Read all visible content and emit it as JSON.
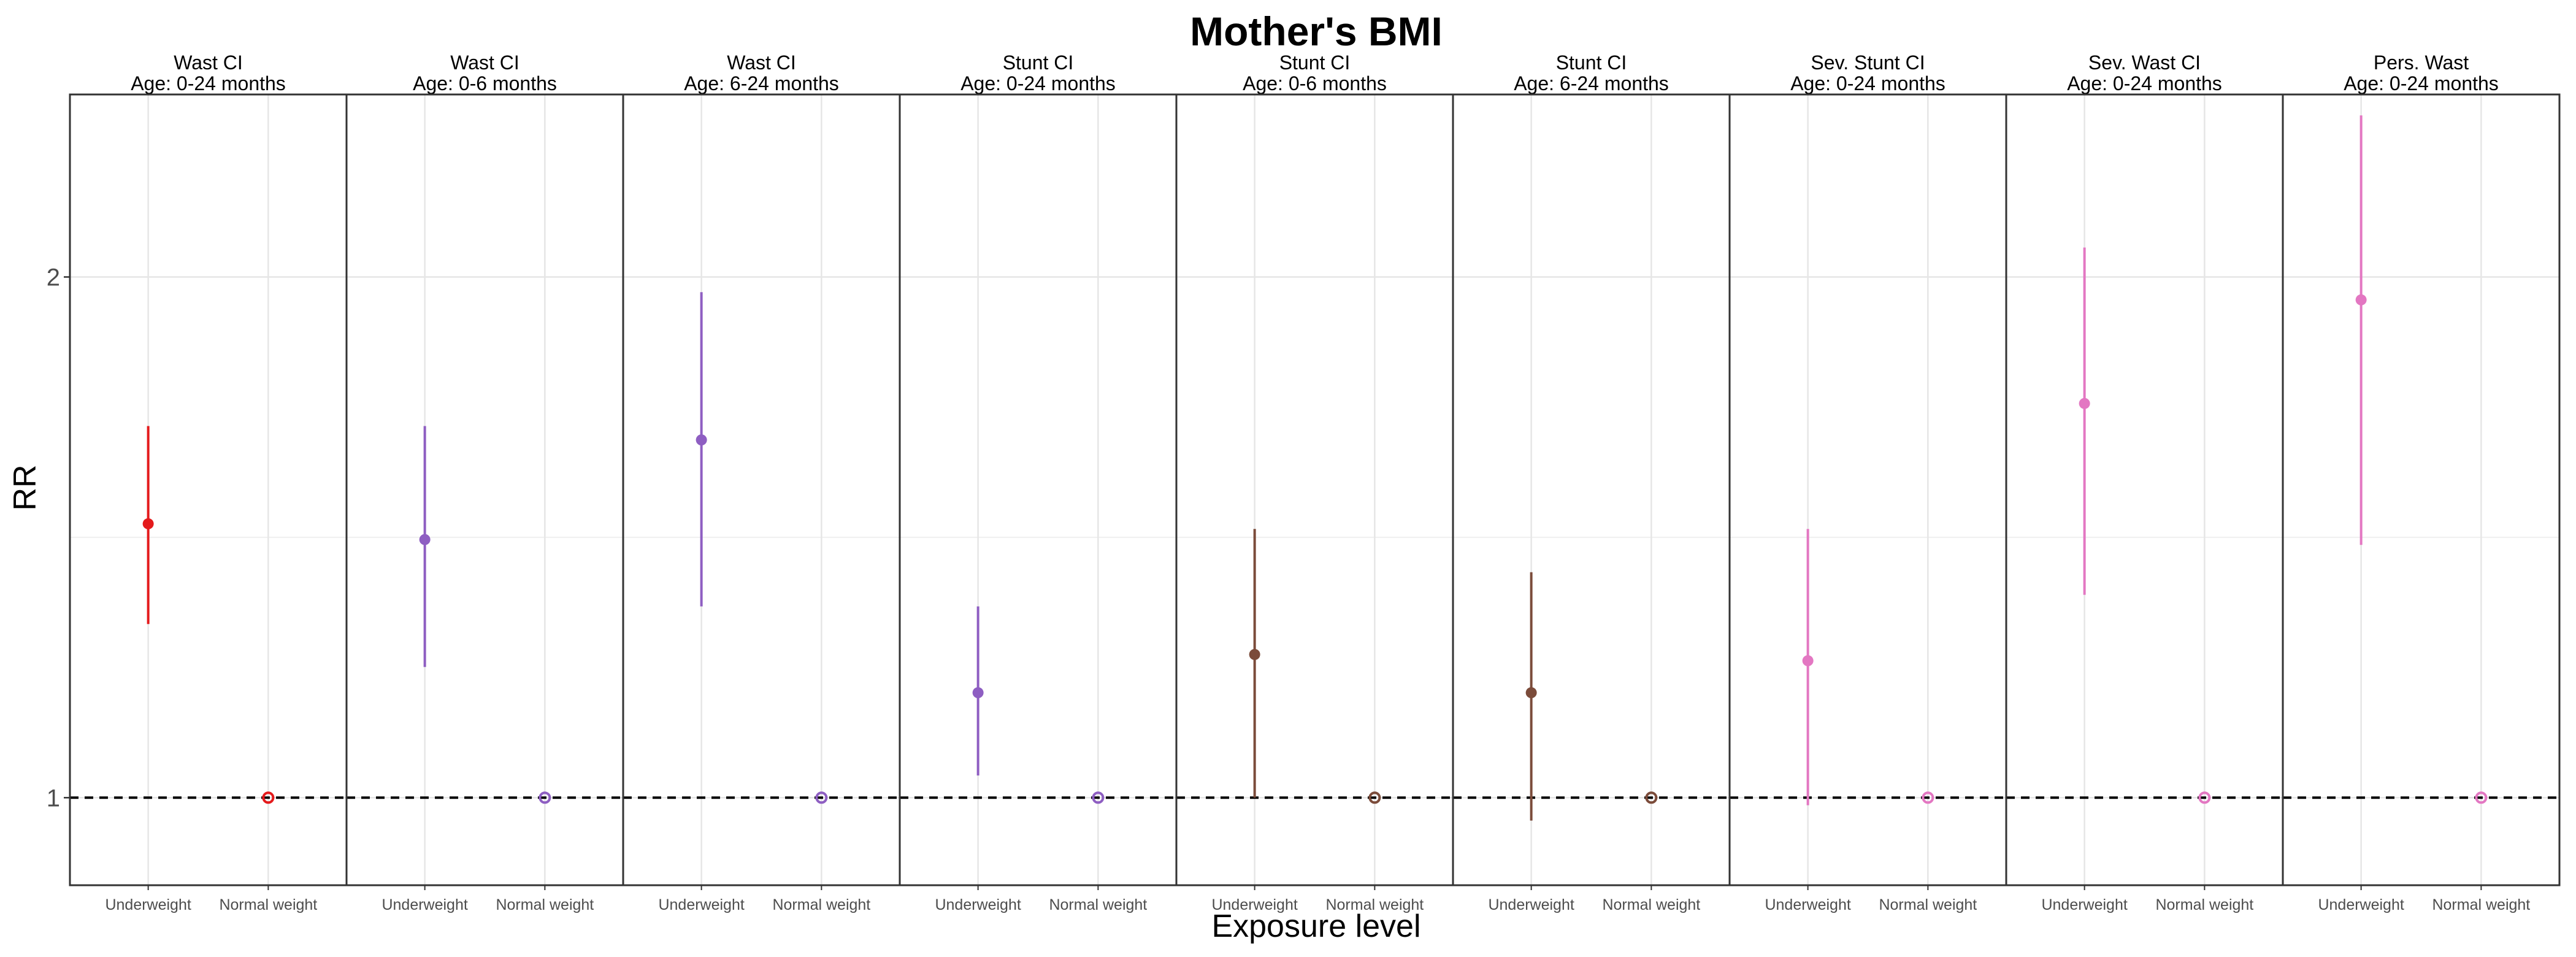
{
  "chart_data": {
    "type": "scatter",
    "title": "Mother's BMI",
    "xlabel": "Exposure level",
    "ylabel": "RR",
    "ylim": [
      0.89,
      2.55
    ],
    "yticks": [
      1,
      2
    ],
    "y_scale": "log",
    "categories": [
      "Underweight",
      "Normal weight"
    ],
    "reference_line": 1,
    "grid": true,
    "legend": "none",
    "panels": [
      {
        "title": "Wast CI",
        "subtitle": "Age: 0-24 months",
        "color": "#e41a1c",
        "points": [
          {
            "x": "Underweight",
            "y": 1.44,
            "lower": 1.26,
            "upper": 1.64
          },
          {
            "x": "Normal weight",
            "y": 1.0
          }
        ]
      },
      {
        "title": "Wast CI",
        "subtitle": "Age: 0-6 months",
        "color": "#8e5ec2",
        "points": [
          {
            "x": "Underweight",
            "y": 1.41,
            "lower": 1.19,
            "upper": 1.64
          },
          {
            "x": "Normal weight",
            "y": 1.0
          }
        ]
      },
      {
        "title": "Wast CI",
        "subtitle": "Age: 6-24 months",
        "color": "#8e5ec2",
        "points": [
          {
            "x": "Underweight",
            "y": 1.61,
            "lower": 1.29,
            "upper": 1.96
          },
          {
            "x": "Normal weight",
            "y": 1.0
          }
        ]
      },
      {
        "title": "Stunt CI",
        "subtitle": "Age: 0-24 months",
        "color": "#8e5ec2",
        "points": [
          {
            "x": "Underweight",
            "y": 1.15,
            "lower": 1.03,
            "upper": 1.29
          },
          {
            "x": "Normal weight",
            "y": 1.0
          }
        ]
      },
      {
        "title": "Stunt CI",
        "subtitle": "Age: 0-6 months",
        "color": "#7b4b3a",
        "points": [
          {
            "x": "Underweight",
            "y": 1.21,
            "lower": 1.0,
            "upper": 1.43
          },
          {
            "x": "Normal weight",
            "y": 1.0
          }
        ]
      },
      {
        "title": "Stunt CI",
        "subtitle": "Age: 6-24 months",
        "color": "#7b4b3a",
        "points": [
          {
            "x": "Underweight",
            "y": 1.15,
            "lower": 0.97,
            "upper": 1.35
          },
          {
            "x": "Normal weight",
            "y": 1.0
          }
        ]
      },
      {
        "title": "Sev. Stunt CI",
        "subtitle": "Age: 0-24 months",
        "color": "#e377c2",
        "points": [
          {
            "x": "Underweight",
            "y": 1.2,
            "lower": 0.99,
            "upper": 1.43
          },
          {
            "x": "Normal weight",
            "y": 1.0
          }
        ]
      },
      {
        "title": "Sev. Wast CI",
        "subtitle": "Age: 0-24 months",
        "color": "#e377c2",
        "points": [
          {
            "x": "Underweight",
            "y": 1.69,
            "lower": 1.31,
            "upper": 2.08
          },
          {
            "x": "Normal weight",
            "y": 1.0
          }
        ]
      },
      {
        "title": "Pers. Wast",
        "subtitle": "Age: 0-24 months",
        "color": "#e377c2",
        "points": [
          {
            "x": "Underweight",
            "y": 1.94,
            "lower": 1.4,
            "upper": 2.48
          },
          {
            "x": "Normal weight",
            "y": 1.0
          }
        ]
      }
    ]
  }
}
